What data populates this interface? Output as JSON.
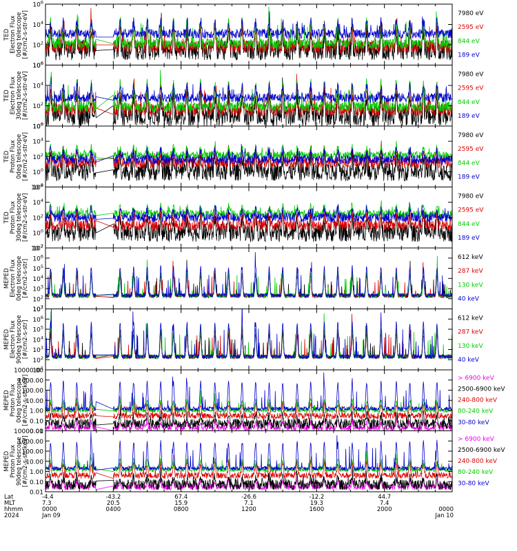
{
  "chart_data": [
    {
      "type": "line",
      "log_y": true,
      "ylim": [
        1,
        1000000
      ],
      "ylabel": [
        "TED",
        "Electron Flux",
        "0deg telescope",
        "[#/cm2-s-str-eV]"
      ],
      "yticks": [
        {
          "v": 1,
          "label": "10",
          "exp": "0"
        },
        {
          "v": 100,
          "label": "10",
          "exp": "2"
        },
        {
          "v": 10000,
          "label": "10",
          "exp": "4"
        },
        {
          "v": 1000000,
          "label": "10",
          "exp": "6"
        }
      ],
      "series": [
        {
          "name": "7980 eV",
          "color": "#000000",
          "base": 30,
          "amp": 2.0,
          "noise": 1.0
        },
        {
          "name": "2595 eV",
          "color": "#dd0000",
          "base": 60,
          "amp": 2.2,
          "noise": 0.6
        },
        {
          "name": "844 eV",
          "color": "#00cc00",
          "base": 120,
          "amp": 2.2,
          "noise": 0.5
        },
        {
          "name": "189 eV",
          "color": "#0000cc",
          "base": 1200,
          "amp": 1.2,
          "noise": 0.45
        }
      ]
    },
    {
      "type": "line",
      "log_y": true,
      "ylim": [
        1,
        1000000
      ],
      "ylabel": [
        "TED",
        "Electron Flux",
        "30deg telescope",
        "[#/cm2-s-str-eV]"
      ],
      "yticks": [
        {
          "v": 1,
          "label": "10",
          "exp": "0"
        },
        {
          "v": 100,
          "label": "10",
          "exp": "2"
        },
        {
          "v": 10000,
          "label": "10",
          "exp": "4"
        },
        {
          "v": 1000000,
          "label": "10",
          "exp": "6"
        }
      ],
      "series": [
        {
          "name": "7980 eV",
          "color": "#000000",
          "base": 10,
          "amp": 2.0,
          "noise": 1.0
        },
        {
          "name": "2595 eV",
          "color": "#dd0000",
          "base": 40,
          "amp": 2.2,
          "noise": 0.6
        },
        {
          "name": "844 eV",
          "color": "#00cc00",
          "base": 80,
          "amp": 2.4,
          "noise": 0.5
        },
        {
          "name": "189 eV",
          "color": "#0000cc",
          "base": 600,
          "amp": 1.2,
          "noise": 0.45
        }
      ]
    },
    {
      "type": "line",
      "log_y": true,
      "ylim": [
        0.01,
        1000000
      ],
      "ylabel": [
        "TED",
        "Proton Flux",
        "0deg telescope",
        "[#/cm2-s-str-eV]"
      ],
      "yticks": [
        {
          "v": 0.01,
          "label": "10",
          "exp": "-2"
        },
        {
          "v": 1,
          "label": "10",
          "exp": "0"
        },
        {
          "v": 100,
          "label": "10",
          "exp": "2"
        },
        {
          "v": 10000,
          "label": "10",
          "exp": "4"
        },
        {
          "v": 1000000,
          "label": "10",
          "exp": "6"
        }
      ],
      "series": [
        {
          "name": "7980 eV",
          "color": "#000000",
          "base": 1,
          "amp": 2.0,
          "noise": 1.2
        },
        {
          "name": "2595 eV",
          "color": "#dd0000",
          "base": 15,
          "amp": 1.5,
          "noise": 0.7
        },
        {
          "name": "844 eV",
          "color": "#00cc00",
          "base": 150,
          "amp": 1.0,
          "noise": 0.5
        },
        {
          "name": "189 eV",
          "color": "#0000cc",
          "base": 40,
          "amp": 1.2,
          "noise": 0.6
        }
      ]
    },
    {
      "type": "line",
      "log_y": true,
      "ylim": [
        0.01,
        1000000
      ],
      "ylabel": [
        "TED",
        "Proton Flux",
        "30deg telescope",
        "[#/cm2-s-str-eV]"
      ],
      "yticks": [
        {
          "v": 0.01,
          "label": "10",
          "exp": "-2"
        },
        {
          "v": 1,
          "label": "10",
          "exp": "0"
        },
        {
          "v": 100,
          "label": "10",
          "exp": "2"
        },
        {
          "v": 10000,
          "label": "10",
          "exp": "4"
        },
        {
          "v": 1000000,
          "label": "10",
          "exp": "6"
        }
      ],
      "series": [
        {
          "name": "7980 eV",
          "color": "#000000",
          "base": 1,
          "amp": 2.0,
          "noise": 1.2
        },
        {
          "name": "2595 eV",
          "color": "#dd0000",
          "base": 10,
          "amp": 1.5,
          "noise": 0.7
        },
        {
          "name": "844 eV",
          "color": "#00cc00",
          "base": 300,
          "amp": 1.0,
          "noise": 0.5
        },
        {
          "name": "189 eV",
          "color": "#0000cc",
          "base": 100,
          "amp": 1.2,
          "noise": 0.6
        }
      ]
    },
    {
      "type": "line",
      "log_y": true,
      "ylim": [
        10,
        10000000
      ],
      "ylabel": [
        "MEPED",
        "Electron Flux",
        "0deg telescope",
        "[#/cm2-s-str]"
      ],
      "yticks": [
        {
          "v": 10,
          "label": "10",
          "exp": "1"
        },
        {
          "v": 100,
          "label": "10",
          "exp": "2"
        },
        {
          "v": 1000,
          "label": "10",
          "exp": "3"
        },
        {
          "v": 10000,
          "label": "10",
          "exp": "4"
        },
        {
          "v": 100000,
          "label": "10",
          "exp": "5"
        },
        {
          "v": 1000000,
          "label": "10",
          "exp": "6"
        },
        {
          "v": 10000000,
          "label": "10",
          "exp": "7"
        }
      ],
      "series": [
        {
          "name": "612 keV",
          "color": "#000000",
          "base": 200,
          "amp": 2.0,
          "noise": 0.2
        },
        {
          "name": "287 keV",
          "color": "#dd0000",
          "base": 200,
          "amp": 2.2,
          "noise": 0.2
        },
        {
          "name": "130 keV",
          "color": "#00cc00",
          "base": 200,
          "amp": 2.3,
          "noise": 0.2
        },
        {
          "name": "40 keV",
          "color": "#0000cc",
          "base": 220,
          "amp": 2.8,
          "noise": 0.2
        }
      ]
    },
    {
      "type": "line",
      "log_y": true,
      "ylim": [
        10,
        10000000
      ],
      "ylabel": [
        "MEPED",
        "Electron Flux",
        "90deg telescope",
        "[#/cm2-s-str]"
      ],
      "yticks": [
        {
          "v": 10,
          "label": "10",
          "exp": "1"
        },
        {
          "v": 100,
          "label": "10",
          "exp": "2"
        },
        {
          "v": 1000,
          "label": "10",
          "exp": "3"
        },
        {
          "v": 10000,
          "label": "10",
          "exp": "4"
        },
        {
          "v": 100000,
          "label": "10",
          "exp": "5"
        },
        {
          "v": 1000000,
          "label": "10",
          "exp": "6"
        },
        {
          "v": 10000000,
          "label": "10",
          "exp": "7"
        }
      ],
      "series": [
        {
          "name": "612 keV",
          "color": "#000000",
          "base": 200,
          "amp": 2.2,
          "noise": 0.2
        },
        {
          "name": "287 keV",
          "color": "#dd0000",
          "base": 200,
          "amp": 2.6,
          "noise": 0.2
        },
        {
          "name": "130 keV",
          "color": "#00cc00",
          "base": 200,
          "amp": 2.8,
          "noise": 0.2
        },
        {
          "name": "40 keV",
          "color": "#0000cc",
          "base": 200,
          "amp": 3.3,
          "noise": 0.2
        }
      ]
    },
    {
      "type": "line",
      "log_y": true,
      "ylim": [
        0.01,
        10000
      ],
      "ylabel": [
        "MEPED",
        "Proton Flux",
        "0deg telescope",
        "[#/cm2-s-str-keV]"
      ],
      "yticks": [
        {
          "v": 0.01,
          "label": "0.01",
          "exp": ""
        },
        {
          "v": 0.1,
          "label": "0.10",
          "exp": ""
        },
        {
          "v": 1,
          "label": "1.00",
          "exp": ""
        },
        {
          "v": 10,
          "label": "10.00",
          "exp": ""
        },
        {
          "v": 100,
          "label": "100.00",
          "exp": ""
        },
        {
          "v": 1000,
          "label": "1000.00",
          "exp": ""
        },
        {
          "v": 10000,
          "label": "10000.00",
          "exp": ""
        }
      ],
      "series": [
        {
          "name": "> 6900 keV",
          "color": "#ee00ee",
          "base": 0.02,
          "amp": 0.6,
          "noise": 0.3
        },
        {
          "name": "2500-6900 keV",
          "color": "#000000",
          "base": 0.05,
          "amp": 0.8,
          "noise": 0.5
        },
        {
          "name": "240-800 keV",
          "color": "#dd0000",
          "base": 0.3,
          "amp": 1.2,
          "noise": 0.3
        },
        {
          "name": "80-240 keV",
          "color": "#00cc00",
          "base": 1.0,
          "amp": 1.0,
          "noise": 0.2
        },
        {
          "name": "30-80 keV",
          "color": "#0000cc",
          "base": 1.5,
          "amp": 2.6,
          "noise": 0.2
        }
      ]
    },
    {
      "type": "line",
      "log_y": true,
      "ylim": [
        0.01,
        10000
      ],
      "ylabel": [
        "MEPED",
        "Proton Flux",
        "90deg telescope",
        "[#/cm2-s-str-keV]"
      ],
      "yticks": [
        {
          "v": 0.01,
          "label": "0.01",
          "exp": ""
        },
        {
          "v": 0.1,
          "label": "0.10",
          "exp": ""
        },
        {
          "v": 1,
          "label": "1.00",
          "exp": ""
        },
        {
          "v": 10,
          "label": "10.00",
          "exp": ""
        },
        {
          "v": 100,
          "label": "100.00",
          "exp": ""
        },
        {
          "v": 1000,
          "label": "1000.00",
          "exp": ""
        },
        {
          "v": 10000,
          "label": "10000.00",
          "exp": ""
        }
      ],
      "series": [
        {
          "name": "> 6900 keV",
          "color": "#ee00ee",
          "base": 0.03,
          "amp": 0.6,
          "noise": 0.3
        },
        {
          "name": "2500-6900 keV",
          "color": "#000000",
          "base": 0.05,
          "amp": 0.8,
          "noise": 0.5
        },
        {
          "name": "240-800 keV",
          "color": "#dd0000",
          "base": 0.4,
          "amp": 1.2,
          "noise": 0.3
        },
        {
          "name": "80-240 keV",
          "color": "#00cc00",
          "base": 1.5,
          "amp": 1.0,
          "noise": 0.2
        },
        {
          "name": "30-80 keV",
          "color": "#0000cc",
          "base": 2.0,
          "amp": 2.6,
          "noise": 0.2
        }
      ]
    }
  ],
  "time_axis": {
    "xlim_hours": [
      0,
      24
    ],
    "gap_hours": [
      3.0,
      4.0
    ],
    "orbit_peak_hours": [
      0.3,
      1.05,
      1.85,
      2.7,
      4.4,
      5.2,
      6.0,
      6.8,
      7.55,
      8.35,
      9.15,
      10.0,
      10.8,
      11.6,
      12.4,
      13.2,
      14.0,
      14.85,
      15.65,
      16.45,
      17.25,
      18.1,
      18.95,
      19.8,
      20.7,
      21.5,
      22.3,
      23.1
    ],
    "ticks": [
      {
        "hour": 0,
        "lat": "-4.4",
        "mlt": "7.3",
        "hhmm": "0000",
        "date": "Jan 09"
      },
      {
        "hour": 4,
        "lat": "-43.2",
        "mlt": "20.5",
        "hhmm": "0400",
        "date": ""
      },
      {
        "hour": 8,
        "lat": "67.4",
        "mlt": "15.9",
        "hhmm": "0800",
        "date": ""
      },
      {
        "hour": 12,
        "lat": "-26.6",
        "mlt": "7.1",
        "hhmm": "1200",
        "date": ""
      },
      {
        "hour": 16,
        "lat": "-12.2",
        "mlt": "19.3",
        "hhmm": "1600",
        "date": ""
      },
      {
        "hour": 20,
        "lat": "44.7",
        "mlt": "7.4",
        "hhmm": "2000",
        "date": ""
      },
      {
        "hour": 24,
        "lat": "",
        "mlt": "",
        "hhmm": "0000",
        "date": "Jan 10"
      }
    ],
    "row_labels": [
      "Lat",
      "MLT",
      "hhmm",
      "2024"
    ]
  }
}
